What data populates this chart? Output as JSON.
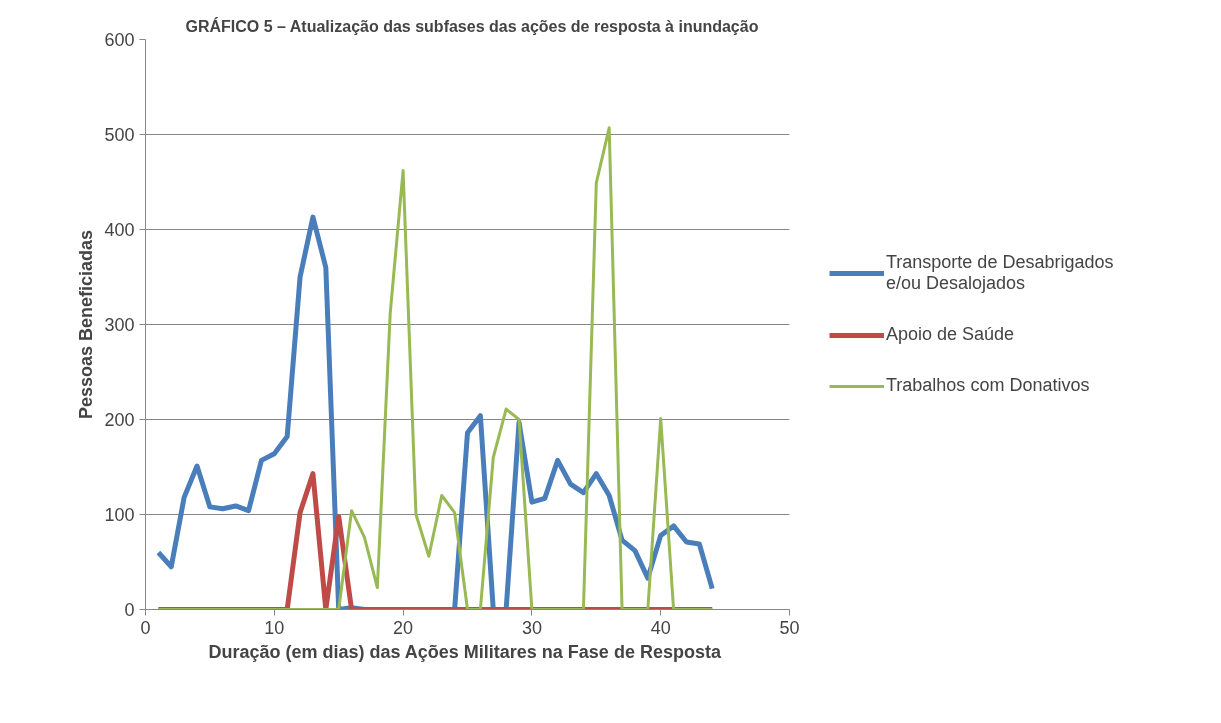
{
  "chart_data": {
    "type": "line",
    "title": "GRÁFICO 5 – Atualização das subfases das ações de resposta à inundação",
    "xlabel": "Duração (em dias) das  Ações Militares na Fase de Resposta",
    "ylabel": "Pessoas Beneficiadas",
    "x": [
      1,
      2,
      3,
      4,
      5,
      6,
      7,
      8,
      9,
      10,
      11,
      12,
      13,
      14,
      15,
      16,
      17,
      18,
      19,
      20,
      21,
      22,
      23,
      24,
      25,
      26,
      27,
      28,
      29,
      30,
      31,
      32,
      33,
      34,
      35,
      36,
      37,
      38,
      39,
      40,
      41,
      42,
      43,
      44
    ],
    "series": [
      {
        "name": "Transporte de Desabrigados e/ou Desalojados",
        "color": "#4a7ebb",
        "values": [
          60,
          45,
          118,
          151,
          108,
          106,
          109,
          104,
          157,
          164,
          182,
          350,
          413,
          360,
          0,
          2,
          0,
          0,
          0,
          0,
          0,
          0,
          0,
          0,
          186,
          204,
          0,
          0,
          197,
          113,
          117,
          157,
          132,
          123,
          143,
          120,
          73,
          62,
          33,
          78,
          88,
          71,
          69,
          22
        ]
      },
      {
        "name": "Apoio de Saúde",
        "color": "#be4b48",
        "values": [
          0,
          0,
          0,
          0,
          0,
          0,
          0,
          0,
          0,
          0,
          0,
          102,
          143,
          0,
          98,
          0,
          0,
          0,
          0,
          0,
          0,
          0,
          0,
          0,
          0,
          0,
          0,
          0,
          0,
          0,
          0,
          0,
          0,
          0,
          0,
          0,
          0,
          0,
          0,
          0,
          0,
          0,
          0,
          0
        ]
      },
      {
        "name": "Trabalhos com Donativos",
        "color": "#98b954",
        "values": [
          0,
          0,
          0,
          0,
          0,
          0,
          0,
          0,
          0,
          0,
          0,
          0,
          0,
          0,
          0,
          104,
          76,
          23,
          312,
          462,
          100,
          56,
          120,
          102,
          0,
          0,
          160,
          211,
          200,
          0,
          0,
          0,
          0,
          0,
          449,
          507,
          0,
          0,
          0,
          201,
          0,
          0,
          0,
          0
        ]
      }
    ],
    "xlim": [
      0,
      50
    ],
    "xticks": [
      0,
      10,
      20,
      30,
      40,
      50
    ],
    "ylim": [
      0,
      600
    ],
    "yticks": [
      0,
      100,
      200,
      300,
      400,
      500,
      600
    ],
    "grid": "y",
    "legend": "right",
    "marker": "none",
    "line_style": "solid"
  }
}
